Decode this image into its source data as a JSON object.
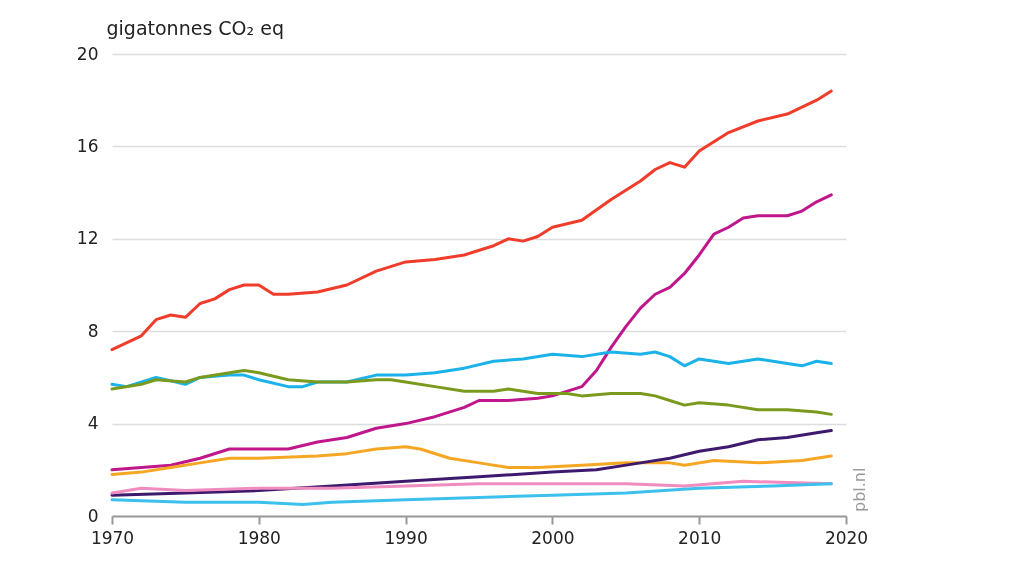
{
  "chart_data": {
    "type": "line",
    "ylabel": "gigatonnes CO₂ eq",
    "xlim": [
      1970,
      2020
    ],
    "xticks": [
      1970,
      1980,
      1990,
      2000,
      2010,
      2020
    ],
    "ylim": [
      0,
      20
    ],
    "yticks": [
      0,
      4,
      8,
      12,
      16,
      20
    ],
    "grid": "y",
    "legend": false,
    "line_style": "solid",
    "marker": "none",
    "annotations": [
      "pbl.nl"
    ],
    "series": [
      {
        "color": "#f03c2a",
        "x": [
          1970,
          1972,
          1973,
          1974,
          1975,
          1976,
          1977,
          1978,
          1979,
          1980,
          1981,
          1982,
          1984,
          1986,
          1988,
          1990,
          1992,
          1994,
          1996,
          1997,
          1998,
          1999,
          2000,
          2002,
          2004,
          2006,
          2007,
          2008,
          2009,
          2010,
          2012,
          2014,
          2016,
          2018,
          2019
        ],
        "values": [
          7.2,
          7.8,
          8.5,
          8.7,
          8.6,
          9.2,
          9.4,
          9.8,
          10.0,
          10.0,
          9.6,
          9.6,
          9.7,
          10.0,
          10.6,
          11.0,
          11.1,
          11.3,
          11.7,
          12.0,
          11.9,
          12.1,
          12.5,
          12.8,
          13.7,
          14.5,
          15.0,
          15.3,
          15.1,
          15.8,
          16.6,
          17.1,
          17.4,
          18.0,
          18.4
        ]
      },
      {
        "color": "#c0168c",
        "x": [
          1970,
          1972,
          1974,
          1976,
          1978,
          1980,
          1982,
          1984,
          1986,
          1988,
          1990,
          1992,
          1994,
          1995,
          1997,
          1999,
          2000,
          2002,
          2003,
          2004,
          2005,
          2006,
          2007,
          2008,
          2009,
          2010,
          2011,
          2012,
          2013,
          2014,
          2016,
          2017,
          2018,
          2019
        ],
        "values": [
          2.0,
          2.1,
          2.2,
          2.5,
          2.9,
          2.9,
          2.9,
          3.2,
          3.4,
          3.8,
          4.0,
          4.3,
          4.7,
          5.0,
          5.0,
          5.1,
          5.2,
          5.6,
          6.3,
          7.3,
          8.2,
          9.0,
          9.6,
          9.9,
          10.5,
          11.3,
          12.2,
          12.5,
          12.9,
          13.0,
          13.0,
          13.2,
          13.6,
          13.9
        ]
      },
      {
        "color": "#1ab2e8",
        "x": [
          1970,
          1971,
          1973,
          1975,
          1976,
          1978,
          1979,
          1980,
          1982,
          1983,
          1984,
          1986,
          1988,
          1990,
          1992,
          1994,
          1996,
          1998,
          2000,
          2002,
          2004,
          2006,
          2007,
          2008,
          2009,
          2010,
          2012,
          2014,
          2016,
          2017,
          2018,
          2019
        ],
        "values": [
          5.7,
          5.6,
          6.0,
          5.7,
          6.0,
          6.1,
          6.1,
          5.9,
          5.6,
          5.6,
          5.8,
          5.8,
          6.1,
          6.1,
          6.2,
          6.4,
          6.7,
          6.8,
          7.0,
          6.9,
          7.1,
          7.0,
          7.1,
          6.9,
          6.5,
          6.8,
          6.6,
          6.8,
          6.6,
          6.5,
          6.7,
          6.6
        ]
      },
      {
        "color": "#7a9a1e",
        "x": [
          1970,
          1972,
          1973,
          1975,
          1976,
          1978,
          1979,
          1980,
          1982,
          1984,
          1986,
          1988,
          1989,
          1990,
          1992,
          1994,
          1996,
          1997,
          1999,
          2001,
          2002,
          2004,
          2006,
          2007,
          2008,
          2009,
          2010,
          2012,
          2014,
          2016,
          2018,
          2019
        ],
        "values": [
          5.5,
          5.7,
          5.9,
          5.8,
          6.0,
          6.2,
          6.3,
          6.2,
          5.9,
          5.8,
          5.8,
          5.9,
          5.9,
          5.8,
          5.6,
          5.4,
          5.4,
          5.5,
          5.3,
          5.3,
          5.2,
          5.3,
          5.3,
          5.2,
          5.0,
          4.8,
          4.9,
          4.8,
          4.6,
          4.6,
          4.5,
          4.4
        ]
      },
      {
        "color": "#f5a623",
        "x": [
          1970,
          1972,
          1974,
          1976,
          1978,
          1980,
          1984,
          1986,
          1988,
          1990,
          1991,
          1993,
          1995,
          1997,
          1999,
          2002,
          2005,
          2008,
          2009,
          2011,
          2014,
          2017,
          2019
        ],
        "values": [
          1.8,
          1.9,
          2.1,
          2.3,
          2.5,
          2.5,
          2.6,
          2.7,
          2.9,
          3.0,
          2.9,
          2.5,
          2.3,
          2.1,
          2.1,
          2.2,
          2.3,
          2.3,
          2.2,
          2.4,
          2.3,
          2.4,
          2.6
        ]
      },
      {
        "color": "#3d1a6e",
        "x": [
          1970,
          1975,
          1980,
          1985,
          1990,
          1995,
          2000,
          2003,
          2006,
          2008,
          2010,
          2012,
          2014,
          2016,
          2018,
          2019
        ],
        "values": [
          0.9,
          1.0,
          1.1,
          1.3,
          1.5,
          1.7,
          1.9,
          2.0,
          2.3,
          2.5,
          2.8,
          3.0,
          3.3,
          3.4,
          3.6,
          3.7
        ]
      },
      {
        "color": "#f08cbf",
        "x": [
          1970,
          1972,
          1975,
          1980,
          1985,
          1990,
          1995,
          2000,
          2005,
          2009,
          2013,
          2019
        ],
        "values": [
          1.0,
          1.2,
          1.1,
          1.2,
          1.2,
          1.3,
          1.4,
          1.4,
          1.4,
          1.3,
          1.5,
          1.4
        ]
      },
      {
        "color": "#3cc0ec",
        "x": [
          1970,
          1975,
          1980,
          1983,
          1985,
          1990,
          1995,
          2000,
          2005,
          2010,
          2015,
          2019
        ],
        "values": [
          0.7,
          0.6,
          0.6,
          0.5,
          0.6,
          0.7,
          0.8,
          0.9,
          1.0,
          1.2,
          1.3,
          1.4
        ]
      }
    ]
  }
}
